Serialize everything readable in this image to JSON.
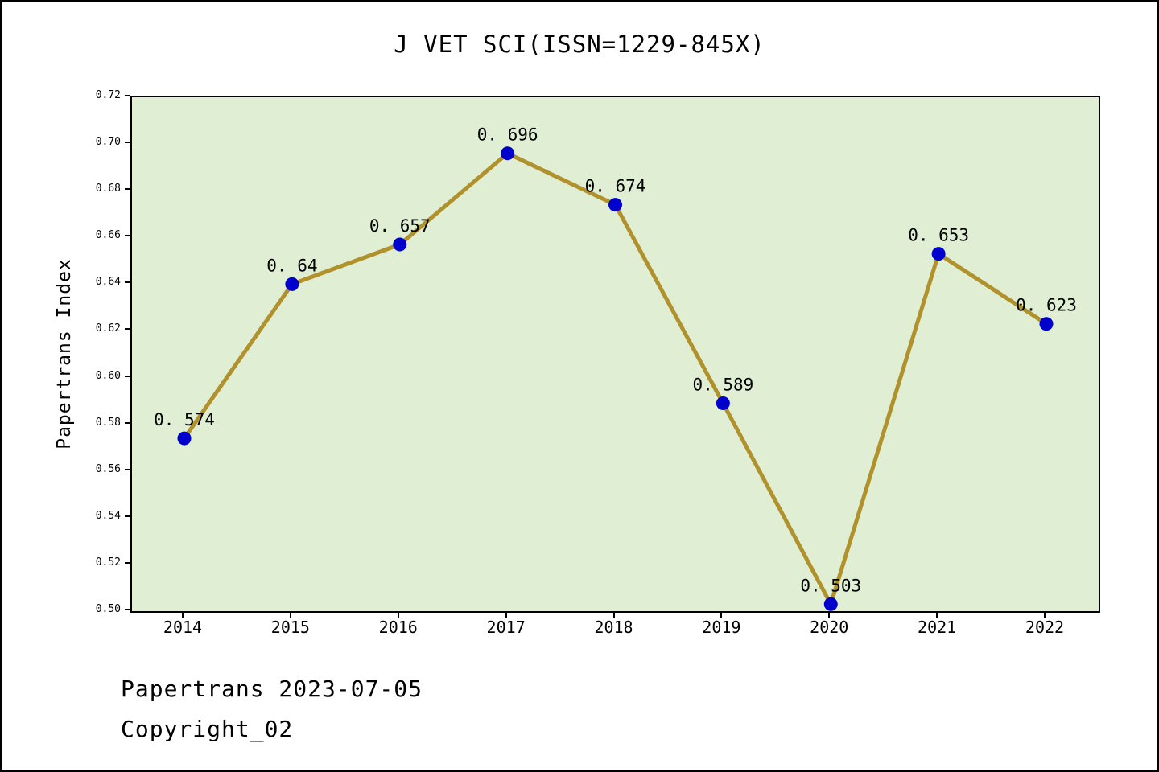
{
  "footer": {
    "line1": "Papertrans 2023-07-05",
    "line2": "Copyright_02"
  },
  "chart_data": {
    "type": "line",
    "title": "J VET SCI(ISSN=1229-845X)",
    "xlabel": "",
    "ylabel": "Papertrans Index",
    "categories": [
      "2014",
      "2015",
      "2016",
      "2017",
      "2018",
      "2019",
      "2020",
      "2021",
      "2022"
    ],
    "values": [
      0.574,
      0.64,
      0.657,
      0.696,
      0.674,
      0.589,
      0.503,
      0.653,
      0.623
    ],
    "point_labels": [
      "0. 574",
      "0. 64",
      "0. 657",
      "0. 696",
      "0. 674",
      "0. 589",
      "0. 503",
      "0. 653",
      "0. 623"
    ],
    "ylim": [
      0.5,
      0.72
    ],
    "ytick_labels": [
      "0.50",
      "0.52",
      "0.54",
      "0.56",
      "0.58",
      "0.60",
      "0.62",
      "0.64",
      "0.66",
      "0.68",
      "0.70",
      "0.72"
    ],
    "grid": false,
    "legend": null,
    "colors": {
      "line": "#b0912c",
      "marker": "#0000cd",
      "plot_bg": "#e0efd4",
      "page_bg": "#ffffff",
      "border": "#000000",
      "text": "#000000"
    }
  }
}
